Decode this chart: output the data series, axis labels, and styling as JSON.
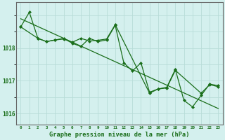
{
  "title": "Graphe pression niveau de la mer (hPa)",
  "x_values": [
    0,
    1,
    2,
    3,
    4,
    5,
    6,
    7,
    8,
    9,
    10,
    11,
    12,
    13,
    14,
    15,
    16,
    17,
    18,
    19,
    20,
    21,
    22,
    23
  ],
  "series1": [
    1018.65,
    1019.1,
    1018.3,
    1018.2,
    1018.25,
    1018.3,
    1018.15,
    1018.05,
    1018.3,
    1018.2,
    1018.25,
    1018.7,
    1017.55,
    1017.3,
    1017.55,
    1016.65,
    1016.75,
    1016.8,
    1017.35,
    1016.4,
    1016.2,
    1016.55,
    1016.9,
    1016.85
  ],
  "series2_x": [
    0,
    2,
    3,
    4,
    5,
    6,
    7,
    8,
    9,
    10,
    11,
    15,
    16,
    17,
    18,
    21,
    22,
    23
  ],
  "series2": [
    1018.65,
    1018.3,
    1018.2,
    1018.25,
    1018.28,
    1018.18,
    1018.3,
    1018.22,
    1018.24,
    1018.28,
    1018.72,
    1016.62,
    1016.75,
    1016.78,
    1017.32,
    1016.62,
    1016.88,
    1016.82
  ],
  "trend_x": [
    0,
    23
  ],
  "trend_y": [
    1018.9,
    1016.15
  ],
  "line_color": "#1a6e1a",
  "bg_color": "#d4f0ee",
  "grid_color": "#b8dcd8",
  "text_color": "#1a6e1a",
  "ylim": [
    1015.65,
    1019.4
  ],
  "yticks": [
    1016,
    1017,
    1018
  ],
  "xlim": [
    -0.5,
    23.5
  ]
}
